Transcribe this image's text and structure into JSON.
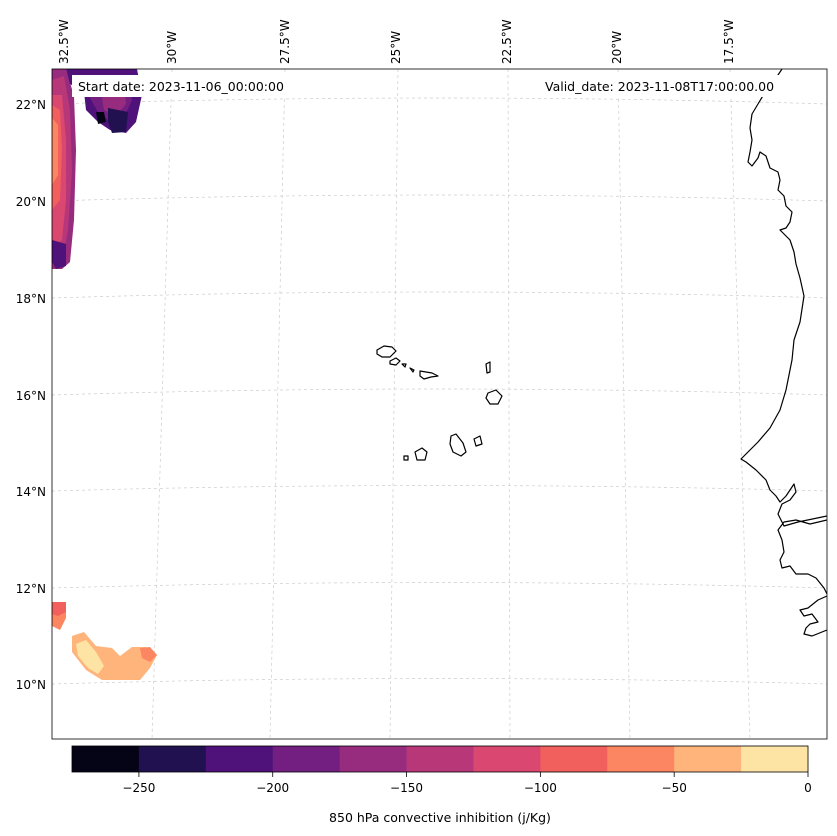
{
  "map": {
    "start_label": "Start date: 2023-11-06_00:00:00",
    "valid_label": "Valid_date: 2023-11-08T17:00:00.00",
    "lon_labels": [
      "32.5°W",
      "30°W",
      "27.5°W",
      "25°W",
      "22.5°W",
      "20°W",
      "17.5°W"
    ],
    "lat_labels": [
      "22°N",
      "20°N",
      "18°N",
      "16°N",
      "14°N",
      "12°N",
      "10°N"
    ],
    "colorbar": {
      "label": "850 hPa convective inhibition (j/Kg)",
      "ticks": [
        "−250",
        "−200",
        "−150",
        "−100",
        "−50",
        "0"
      ],
      "min": -275,
      "max": 0,
      "colors": [
        "#050417",
        "#221150",
        "#4f127b",
        "#721f81",
        "#972c7f",
        "#b73779",
        "#da4770",
        "#f1605d",
        "#fb8661",
        "#feb47b",
        "#fde4a4"
      ]
    },
    "colormap": "magma",
    "gridlines": true
  }
}
